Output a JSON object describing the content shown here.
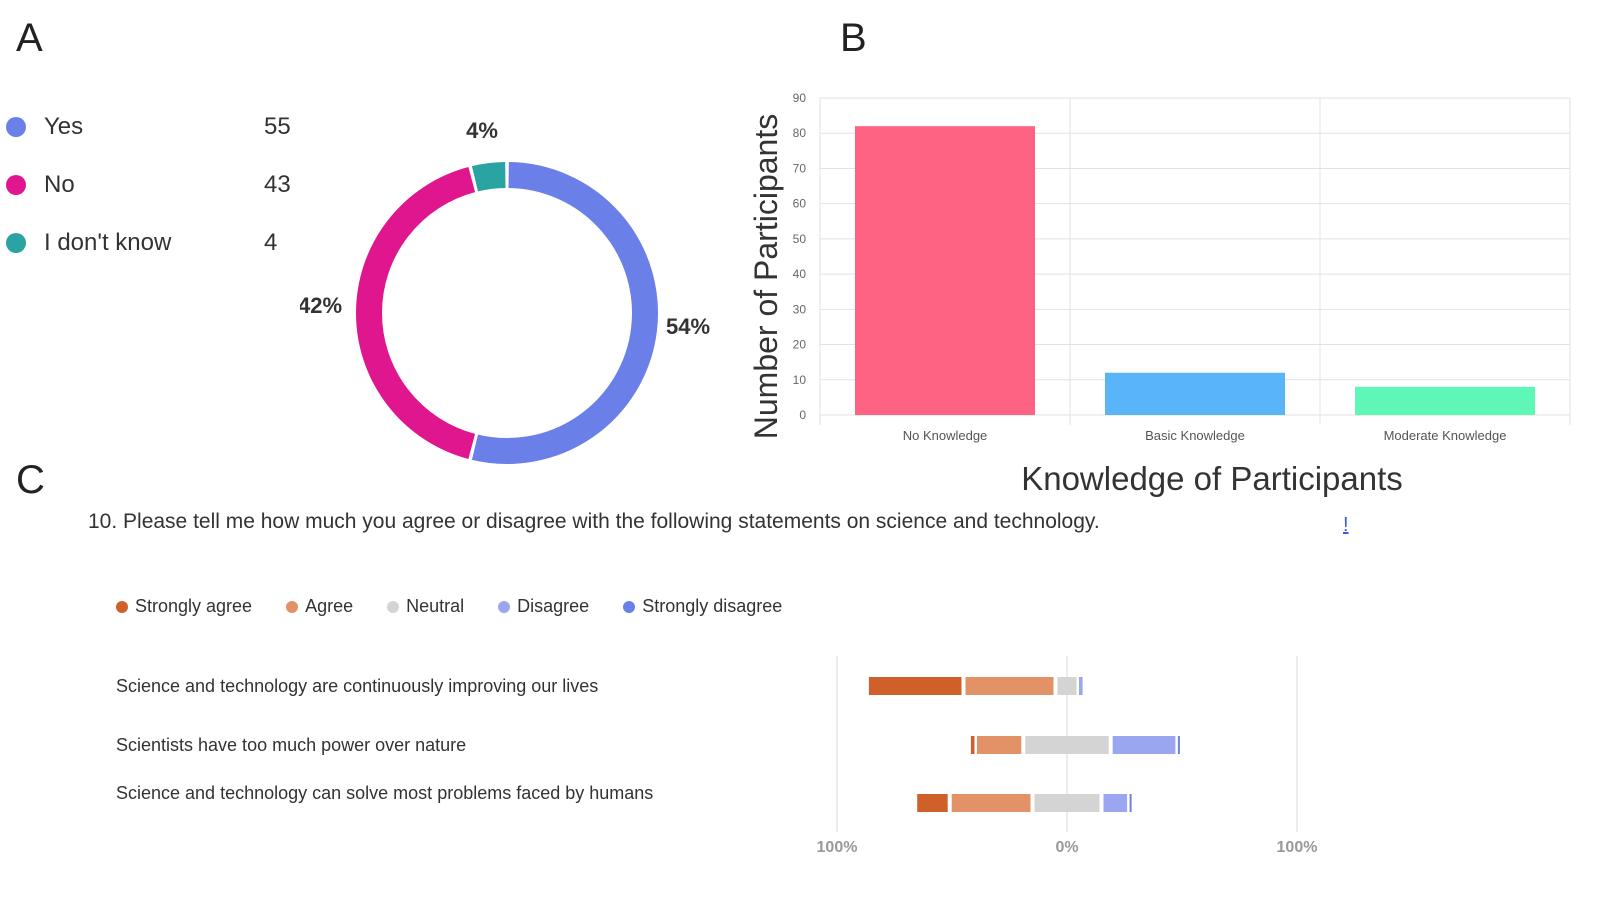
{
  "panels": {
    "a": "A",
    "b": "B",
    "c": "C"
  },
  "chart_data": [
    {
      "type": "pie",
      "panel": "A",
      "categories": [
        "Yes",
        "No",
        "I don't know"
      ],
      "values": [
        55,
        43,
        4
      ],
      "percent_labels": [
        "54%",
        "42%",
        "4%"
      ],
      "colors": [
        "#6a7fe8",
        "#e0168f",
        "#2aa3a3"
      ],
      "donut": true
    },
    {
      "type": "bar",
      "panel": "B",
      "categories": [
        "No Knowledge",
        "Basic Knowledge",
        "Moderate Knowledge"
      ],
      "values": [
        82,
        12,
        8
      ],
      "colors": [
        "#ff6384",
        "#5ab4f8",
        "#5ff7b8"
      ],
      "ylabel": "Number of Participants",
      "xlabel": "Knowledge of Participants",
      "ylim": [
        0,
        90
      ],
      "yticks": [
        "0",
        "10",
        "20",
        "30",
        "40",
        "50",
        "60",
        "70",
        "80",
        "90"
      ],
      "grid": true
    },
    {
      "type": "bar",
      "panel": "C",
      "orientation": "horizontal-diverging",
      "question": "10. Please tell me how much you agree or disagree with the following statements on science and technology.",
      "question_mark": "!",
      "legend": [
        "Strongly agree",
        "Agree",
        "Neutral",
        "Disagree",
        "Strongly disagree"
      ],
      "colors": [
        "#d0602a",
        "#e39166",
        "#d4d4d4",
        "#9aa7f0",
        "#6a7fe8"
      ],
      "categories": [
        "Science and technology are continuously improving our lives",
        "Scientists have too much power over nature",
        "Science and technology can solve most problems faced by humans"
      ],
      "series": [
        {
          "name": "Strongly agree",
          "values": [
            42,
            2,
            15
          ]
        },
        {
          "name": "Agree",
          "values": [
            40,
            21,
            36
          ]
        },
        {
          "name": "Neutral",
          "values": [
            10,
            38,
            30
          ]
        },
        {
          "name": "Disagree",
          "values": [
            2,
            29,
            12
          ]
        },
        {
          "name": "Strongly disagree",
          "values": [
            0,
            1,
            1
          ]
        }
      ],
      "xticks": [
        "100%",
        "0%",
        "100%"
      ]
    }
  ]
}
